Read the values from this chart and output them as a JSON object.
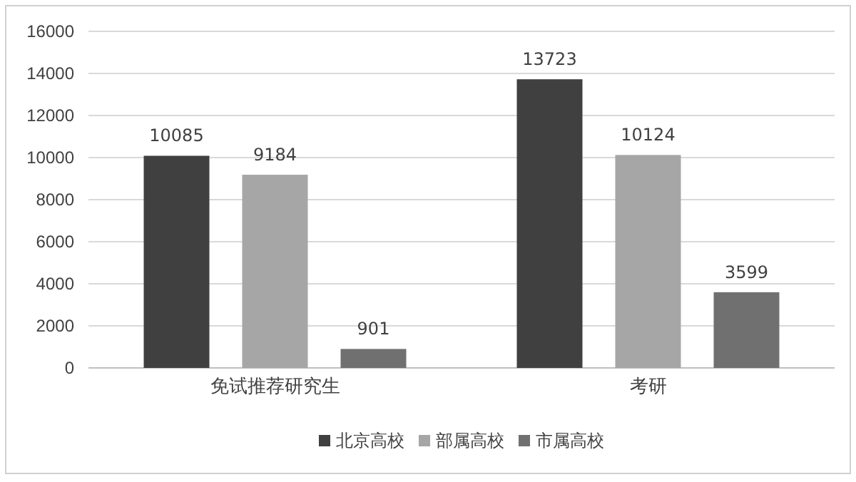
{
  "chart_data": {
    "type": "bar",
    "categories": [
      "免试推荐研究生",
      "考研"
    ],
    "series": [
      {
        "name": "北京高校",
        "color": "#404040",
        "values": [
          10085,
          13723
        ]
      },
      {
        "name": "部属高校",
        "color": "#a6a6a6",
        "values": [
          9184,
          10124
        ]
      },
      {
        "name": "市属高校",
        "color": "#707070",
        "values": [
          901,
          3599
        ]
      }
    ],
    "ylim": [
      0,
      16000
    ],
    "yticks": [
      0,
      2000,
      4000,
      6000,
      8000,
      10000,
      12000,
      14000,
      16000
    ],
    "grid": "y",
    "legend": "bottom",
    "data_labels": true
  }
}
